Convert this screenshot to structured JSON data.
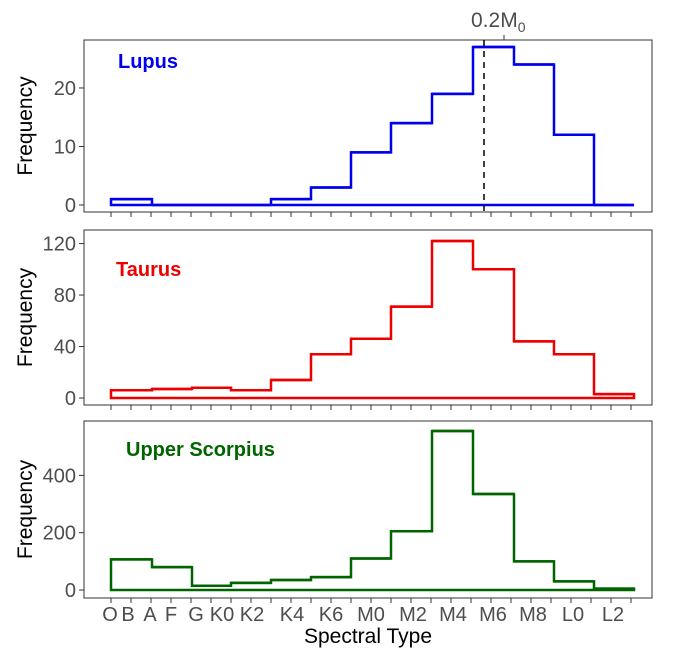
{
  "chart_data": [
    {
      "type": "histogram",
      "label": "Lupus",
      "color": "#0000ee",
      "ylabel": "Frequency",
      "ylim": [
        0,
        27
      ],
      "yticks": [
        0,
        10,
        20
      ],
      "bins": [
        "O",
        "B",
        "A",
        "F",
        "G",
        "K0",
        "K2",
        "K4",
        "K6",
        "M0",
        "M2",
        "M4",
        "M6",
        "M8"
      ],
      "values": [
        1,
        0,
        0,
        0,
        1,
        3,
        9,
        14,
        19,
        27,
        24,
        12,
        0
      ]
    },
    {
      "type": "histogram",
      "label": "Taurus",
      "color": "#ee0000",
      "ylabel": "Frequency",
      "ylim": [
        0,
        122
      ],
      "yticks": [
        0,
        40,
        80,
        120
      ],
      "values": [
        6,
        7,
        8,
        6,
        14,
        34,
        46,
        71,
        122,
        100,
        44,
        34,
        3
      ]
    },
    {
      "type": "histogram",
      "label": "Upper Scorpius",
      "color": "#006400",
      "ylabel": "Frequency",
      "ylim": [
        0,
        555
      ],
      "yticks": [
        0,
        200,
        400
      ],
      "values": [
        107,
        80,
        15,
        25,
        35,
        45,
        110,
        205,
        555,
        335,
        100,
        30,
        5
      ]
    }
  ],
  "x_axis": {
    "label": "Spectral Type",
    "ticks": [
      "O",
      "B",
      "A",
      "F",
      "G",
      "K0",
      "K2",
      "K4",
      "K6",
      "M0",
      "M2",
      "M4",
      "M6",
      "M8",
      "L0",
      "L2"
    ]
  },
  "reference_line": {
    "label_main": "0.2M",
    "label_sub": "0",
    "style": "dashed"
  }
}
